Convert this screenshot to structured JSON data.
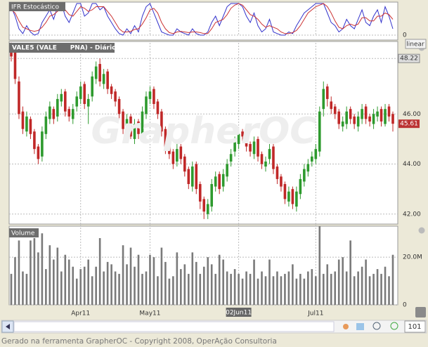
{
  "chart_data": [
    {
      "type": "line",
      "title": "IFR Estocástico",
      "series": [
        {
          "color": "#3333cc",
          "values": [
            90,
            60,
            20,
            5,
            30,
            10,
            0,
            5,
            40,
            60,
            80,
            50,
            90,
            100,
            60,
            40,
            70,
            100,
            100,
            60,
            70,
            100,
            100,
            80,
            90,
            60,
            40,
            20,
            5,
            0,
            20,
            5,
            30,
            10,
            60,
            90,
            100,
            70,
            40,
            10,
            5,
            0,
            0,
            20,
            10,
            5,
            0,
            20,
            5,
            0,
            0,
            10,
            40,
            60,
            30,
            60,
            90,
            100,
            100,
            100,
            90,
            60,
            40,
            70,
            30,
            10,
            20,
            50,
            10,
            5,
            0,
            0,
            10,
            5,
            30,
            50,
            70,
            80,
            90,
            100,
            100,
            100,
            70,
            40,
            30,
            10,
            20,
            50,
            30,
            20,
            50,
            80,
            40,
            30,
            60,
            80,
            40,
            90,
            60,
            20
          ]
        },
        {
          "color": "#cc3333",
          "values": [
            80,
            70,
            45,
            25,
            20,
            15,
            12,
            15,
            25,
            40,
            60,
            65,
            75,
            85,
            80,
            65,
            60,
            75,
            90,
            85,
            75,
            80,
            90,
            90,
            90,
            75,
            60,
            40,
            20,
            10,
            10,
            12,
            18,
            20,
            35,
            55,
            80,
            85,
            70,
            40,
            20,
            8,
            5,
            10,
            12,
            10,
            8,
            10,
            10,
            8,
            5,
            5,
            20,
            40,
            45,
            50,
            65,
            85,
            95,
            100,
            95,
            80,
            65,
            60,
            50,
            35,
            25,
            30,
            25,
            20,
            10,
            5,
            5,
            8,
            15,
            30,
            50,
            70,
            80,
            90,
            95,
            100,
            90,
            70,
            45,
            25,
            20,
            30,
            35,
            30,
            35,
            55,
            55,
            45,
            45,
            60,
            60,
            70,
            65,
            50
          ]
        }
      ],
      "ylim": [
        0,
        100
      ],
      "yticks": [
        0
      ]
    },
    {
      "type": "candlestick",
      "title": "VALE5 (VALE      PNA) - Diário",
      "scale": "linear",
      "watermark": "GrapherOC",
      "open": [
        48.7,
        48.6,
        47.3,
        46.1,
        45.3,
        45.8,
        45.3,
        44.7,
        44.3,
        45.2,
        45.8,
        46.2,
        45.9,
        46.5,
        46.9,
        46.2,
        45.8,
        46.3,
        46.6,
        47.2,
        46.3,
        46.7,
        47.4,
        48.0,
        47.2,
        47.7,
        47.1,
        46.9,
        46.6,
        46.1,
        45.2,
        45.9,
        45.0,
        45.7,
        45.1,
        46.0,
        46.6,
        47.0,
        46.5,
        46.1,
        45.4,
        44.8,
        44.5,
        44.1,
        44.7,
        44.3,
        43.8,
        43.1,
        44.0,
        43.2,
        42.6,
        42.0,
        42.3,
        43.1,
        43.6,
        43.1,
        43.5,
        44.1,
        44.5,
        44.8,
        45.3,
        45.2,
        44.8,
        44.4,
        45.0,
        44.4,
        43.9,
        44.2,
        44.7,
        43.9,
        43.5,
        43.2,
        42.5,
        43.0,
        42.3,
        42.8,
        43.3,
        43.7,
        44.1,
        44.2,
        44.5,
        46.2,
        47.1,
        46.5,
        46.3,
        46.1,
        45.5,
        45.6,
        46.2,
        45.9,
        45.5,
        45.8,
        46.3,
        45.9,
        45.6,
        45.9,
        46.2,
        45.6,
        46.3,
        46.0
      ],
      "high": [
        48.85,
        48.7,
        47.5,
        46.3,
        46.1,
        45.9,
        45.4,
        44.8,
        45.5,
        46.1,
        46.5,
        46.3,
        46.8,
        47.0,
        47.0,
        46.3,
        46.4,
        46.9,
        47.3,
        47.3,
        46.8,
        47.7,
        48.1,
        48.22,
        47.8,
        47.8,
        47.2,
        47.0,
        46.7,
        46.2,
        46.0,
        46.0,
        45.8,
        45.8,
        46.3,
        46.9,
        47.1,
        47.1,
        46.6,
        46.2,
        45.5,
        44.9,
        44.6,
        44.8,
        44.8,
        44.4,
        43.9,
        44.1,
        44.1,
        43.3,
        42.7,
        42.6,
        43.4,
        43.7,
        43.7,
        43.8,
        44.2,
        44.6,
        45.1,
        45.4,
        45.4,
        45.3,
        44.9,
        45.1,
        45.1,
        44.5,
        44.3,
        44.8,
        44.8,
        44.0,
        43.6,
        43.3,
        43.1,
        43.1,
        43.1,
        43.6,
        44.0,
        44.2,
        44.5,
        44.8,
        46.3,
        47.3,
        47.2,
        46.7,
        46.4,
        46.2,
        45.9,
        46.3,
        46.3,
        46.0,
        46.1,
        46.4,
        46.4,
        46.0,
        46.2,
        46.3,
        46.3,
        46.4,
        46.4,
        46.1
      ],
      "low": [
        48.1,
        47.2,
        45.8,
        45.2,
        45.1,
        45.0,
        44.4,
        44.0,
        44.1,
        45.0,
        45.6,
        45.6,
        45.7,
        46.3,
        45.9,
        45.7,
        45.6,
        46.1,
        46.4,
        46.2,
        45.6,
        46.5,
        47.2,
        47.1,
        47.0,
        46.8,
        46.6,
        46.3,
        45.8,
        45.2,
        45.0,
        45.0,
        44.8,
        45.0,
        44.9,
        45.8,
        46.4,
        46.2,
        45.8,
        45.1,
        44.4,
        44.2,
        43.8,
        43.9,
        44.0,
        43.5,
        43.0,
        42.9,
        42.8,
        42.2,
        41.8,
        41.8,
        42.1,
        42.9,
        42.8,
        42.9,
        43.3,
        43.9,
        44.3,
        44.6,
        44.9,
        44.5,
        44.3,
        44.2,
        44.1,
        43.8,
        43.7,
        44.0,
        43.6,
        43.2,
        42.9,
        42.4,
        42.3,
        42.2,
        42.1,
        42.6,
        43.1,
        43.5,
        43.9,
        44.0,
        44.3,
        45.9,
        46.3,
        46.0,
        45.8,
        45.4,
        45.3,
        45.4,
        45.6,
        45.4,
        45.3,
        45.6,
        45.6,
        45.5,
        45.4,
        45.7,
        45.5,
        45.5,
        45.7,
        45.3
      ],
      "close": [
        48.3,
        47.4,
        46.0,
        45.4,
        45.9,
        45.2,
        44.6,
        44.2,
        45.3,
        45.9,
        46.3,
        45.8,
        46.6,
        46.8,
        46.1,
        45.9,
        46.2,
        46.7,
        47.1,
        46.4,
        46.6,
        47.5,
        47.9,
        47.3,
        47.6,
        47.0,
        46.8,
        46.5,
        46.0,
        45.4,
        45.8,
        45.1,
        45.6,
        45.2,
        46.1,
        46.7,
        46.9,
        46.4,
        46.0,
        45.3,
        44.6,
        44.4,
        44.0,
        44.6,
        44.2,
        43.7,
        43.2,
        43.9,
        43.0,
        42.5,
        42.1,
        42.4,
        43.2,
        43.5,
        43.0,
        43.6,
        44.0,
        44.4,
        44.9,
        45.2,
        45.1,
        44.7,
        44.5,
        44.9,
        44.3,
        44.0,
        44.1,
        44.6,
        43.8,
        43.4,
        43.1,
        42.6,
        42.9,
        42.4,
        42.9,
        43.4,
        43.8,
        44.0,
        44.3,
        44.6,
        46.1,
        47.0,
        46.6,
        46.2,
        46.0,
        45.6,
        45.7,
        46.1,
        45.8,
        45.6,
        45.9,
        46.2,
        45.8,
        45.7,
        46.0,
        46.1,
        45.7,
        46.2,
        45.9,
        45.61
      ],
      "up_color": "#2e9a2e",
      "down_color": "#c02828",
      "reference_price": 48.22,
      "xlim": [
        0,
        99
      ],
      "xticks": [
        {
          "value": 18,
          "label": "Apr11"
        },
        {
          "value": 36,
          "label": "May11"
        },
        {
          "value": 79,
          "label": "Jul11"
        }
      ],
      "cursor": {
        "value": 59,
        "label": "02Jun11"
      },
      "ylim": [
        41.6,
        48.9
      ],
      "yticks": [
        {
          "value": 42,
          "label": "42.00"
        },
        {
          "value": 44,
          "label": "44.00"
        },
        {
          "value": 46,
          "label": "46.00"
        }
      ],
      "grid": true
    },
    {
      "type": "bar",
      "title": "Volume",
      "color": "#7a7a7a",
      "values": [
        13,
        20,
        27,
        14,
        13,
        27,
        28,
        22,
        30,
        15,
        25,
        19,
        24,
        14,
        21,
        19,
        16,
        11,
        15,
        16,
        19,
        12,
        16,
        28,
        14,
        18,
        17,
        14,
        13,
        25,
        17,
        24,
        16,
        21,
        13,
        14,
        21,
        20,
        12,
        24,
        18,
        11,
        12,
        22,
        15,
        17,
        13,
        22,
        18,
        13,
        16,
        20,
        17,
        13,
        21,
        19,
        14,
        13,
        15,
        13,
        11,
        14,
        13,
        19,
        11,
        14,
        12,
        19,
        12,
        14,
        12,
        13,
        14,
        17,
        11,
        13,
        11,
        14,
        15,
        12,
        33,
        13,
        17,
        13,
        14,
        19,
        20,
        14,
        27,
        12,
        14,
        16,
        19,
        12,
        13,
        15,
        13,
        16,
        12,
        21
      ],
      "ylim": [
        0,
        33
      ],
      "yticks": [
        0,
        {
          "value": 20,
          "label": "20.0M"
        }
      ]
    }
  ],
  "toolbar": {
    "zoom_count": 101
  },
  "footer": "Gerado na ferramenta GrapherOC - Copyright 2008, OperAção Consultoria"
}
